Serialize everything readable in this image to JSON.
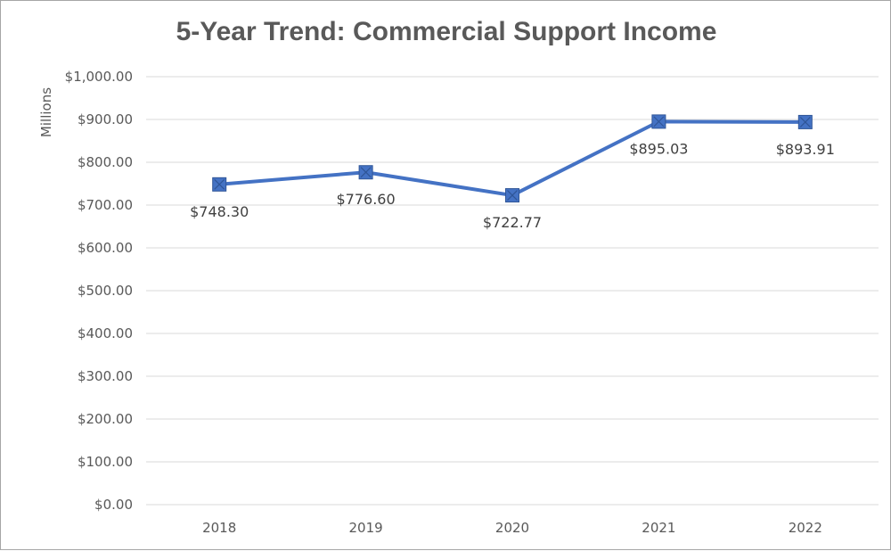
{
  "chart_data": {
    "type": "line",
    "title": "5-Year Trend: Commercial Support Income",
    "ylabel": "Millions",
    "xlabel": "",
    "categories": [
      "2018",
      "2019",
      "2020",
      "2021",
      "2022"
    ],
    "series": [
      {
        "values": [
          748.3,
          776.6,
          722.77,
          895.03,
          893.91
        ],
        "labels": [
          "$748.30",
          "$776.60",
          "$722.77",
          "$895.03",
          "$893.91"
        ]
      }
    ],
    "ylim": [
      0,
      1000
    ],
    "y_ticks": [
      0,
      100,
      200,
      300,
      400,
      500,
      600,
      700,
      800,
      900,
      1000
    ],
    "y_tick_labels": [
      "$0.00",
      "$100.00",
      "$200.00",
      "$300.00",
      "$400.00",
      "$500.00",
      "$600.00",
      "$700.00",
      "$800.00",
      "$900.00",
      "$1,000.00"
    ],
    "grid": true,
    "legend": "none",
    "colors": {
      "line": "#4472c4",
      "marker": "#4472c4",
      "grid": "#d9d9d9",
      "text": "#595959"
    }
  }
}
